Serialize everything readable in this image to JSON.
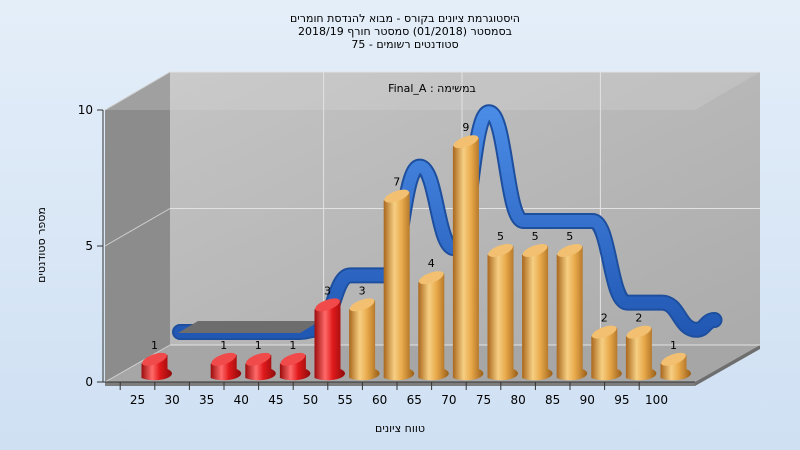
{
  "chart_data": {
    "type": "bar",
    "title_lines": [
      "היסטוגרמת ציונים בקורס - מבוא להנדסת חומרים",
      "בסמסטר  (01/2018)  סמסטר חורף 2018/19",
      "סטודנטים רשומים - 75"
    ],
    "annotation": "Final_A : במשימה",
    "xlabel": "טווח ציונים",
    "ylabel": "מספר סטודנטים",
    "ylim": [
      0,
      10
    ],
    "yticks": [
      0,
      5,
      10
    ],
    "x_tick_labels": [
      "25",
      "30",
      "35",
      "40",
      "45",
      "50",
      "55",
      "60",
      "65",
      "70",
      "75",
      "80",
      "85",
      "90",
      "95",
      "100"
    ],
    "bars": [
      {
        "x": 25,
        "value": 1,
        "label": "1"
      },
      {
        "x": 35,
        "value": 1,
        "label": "1"
      },
      {
        "x": 40,
        "value": 1,
        "label": "1"
      },
      {
        "x": 45,
        "value": 1,
        "label": "1"
      },
      {
        "x": 50,
        "value": 3,
        "label": "3"
      },
      {
        "x": 55,
        "value": 3,
        "label": "3"
      },
      {
        "x": 60,
        "value": 7,
        "label": "7"
      },
      {
        "x": 65,
        "value": 4,
        "label": "4"
      },
      {
        "x": 70,
        "value": 9,
        "label": "9"
      },
      {
        "x": 75,
        "value": 5,
        "label": "5"
      },
      {
        "x": 80,
        "value": 5,
        "label": "5"
      },
      {
        "x": 85,
        "value": 5,
        "label": "5"
      },
      {
        "x": 90,
        "value": 2,
        "label": "2"
      },
      {
        "x": 95,
        "value": 2,
        "label": "2"
      },
      {
        "x": 100,
        "value": 1,
        "label": "1"
      }
    ],
    "fail_threshold": 55,
    "colors": {
      "fail_bar": "#e8282a",
      "pass_bar": "#e8a94a",
      "curve": "#2f6fd0",
      "back_wall": "#b9b9b9",
      "side_wall": "#8a8a8a",
      "floor": "#a9a9a9"
    },
    "grid": true
  }
}
